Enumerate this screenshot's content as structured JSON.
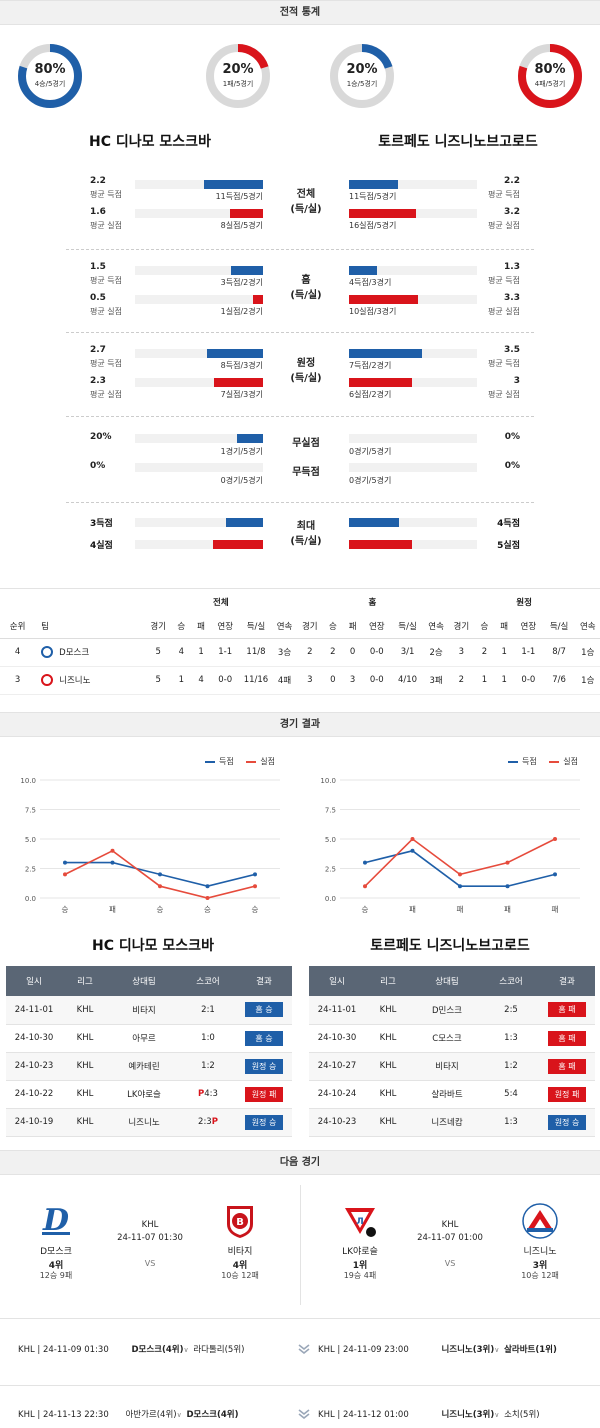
{
  "sections": {
    "stats": "전적 통계",
    "results": "경기 결과",
    "next": "다음 경기"
  },
  "teams": {
    "home": "HC 디나모 모스크바",
    "away": "토르페도 니즈니노브고로드"
  },
  "donuts": [
    {
      "pct": "80%",
      "sub": "4승/5경기",
      "value": 0.8,
      "color": "#1f5fa8"
    },
    {
      "pct": "20%",
      "sub": "1패/5경기",
      "value": 0.2,
      "color": "#d9141b"
    },
    {
      "pct": "20%",
      "sub": "1승/5경기",
      "value": 0.2,
      "color": "#1f5fa8"
    },
    {
      "pct": "80%",
      "sub": "4패/5경기",
      "value": 0.8,
      "color": "#d9141b"
    }
  ],
  "compare": {
    "labels": {
      "avg_gf": "평균 득점",
      "avg_ga": "평균 실점"
    },
    "groups": [
      {
        "cat1": "전체",
        "cat2": "(득/실)",
        "home": {
          "gf": "2.2",
          "gf_cap": "11득점/5경기",
          "gf_frac": 0.46,
          "ga": "1.6",
          "ga_cap": "8실점/5경기",
          "ga_frac": 0.26
        },
        "away": {
          "gf": "2.2",
          "gf_cap": "11득점/5경기",
          "gf_frac": 0.38,
          "ga": "3.2",
          "ga_cap": "16실점/5경기",
          "ga_frac": 0.52
        }
      },
      {
        "cat1": "홈",
        "cat2": "(득/실)",
        "home": {
          "gf": "1.5",
          "gf_cap": "3득점/2경기",
          "gf_frac": 0.25,
          "ga": "0.5",
          "ga_cap": "1실점/2경기",
          "ga_frac": 0.08
        },
        "away": {
          "gf": "1.3",
          "gf_cap": "4득점/3경기",
          "gf_frac": 0.22,
          "ga": "3.3",
          "ga_cap": "10실점/3경기",
          "ga_frac": 0.54
        }
      },
      {
        "cat1": "원정",
        "cat2": "(득/실)",
        "home": {
          "gf": "2.7",
          "gf_cap": "8득점/3경기",
          "gf_frac": 0.44,
          "ga": "2.3",
          "ga_cap": "7실점/3경기",
          "ga_frac": 0.38
        },
        "away": {
          "gf": "3.5",
          "gf_cap": "7득점/2경기",
          "gf_frac": 0.57,
          "ga": "3",
          "ga_cap": "6실점/2경기",
          "ga_frac": 0.49
        }
      }
    ],
    "cleansheet": {
      "cat1": "무실점",
      "cat2": "무득점",
      "home_cs": "20%",
      "home_cs_cap": "1경기/5경기",
      "home_cs_frac": 0.2,
      "away_cs": "0%",
      "away_cs_cap": "0경기/5경기",
      "home_ns": "0%",
      "home_ns_cap": "0경기/5경기",
      "away_ns": "0%",
      "away_ns_cap": "0경기/5경기"
    },
    "max": {
      "cat1": "최대",
      "cat2": "(득/실)",
      "home_gf": "3득점",
      "home_ga": "4실점",
      "away_gf": "4득점",
      "away_ga": "5실점",
      "home_gf_frac": 0.29,
      "home_ga_frac": 0.39,
      "away_gf_frac": 0.39,
      "away_ga_frac": 0.49
    }
  },
  "standings": {
    "group_headers": [
      "전체",
      "홈",
      "원정"
    ],
    "headers": [
      "순위",
      "팀",
      "경기",
      "승",
      "패",
      "연장",
      "득/실",
      "연속",
      "경기",
      "승",
      "패",
      "연장",
      "득/실",
      "연속",
      "경기",
      "승",
      "패",
      "연장",
      "득/실",
      "연속"
    ],
    "rows": [
      [
        "4",
        "D모스크",
        "5",
        "4",
        "1",
        "1-1",
        "11/8",
        "3승",
        "2",
        "2",
        "0",
        "0-0",
        "3/1",
        "2승",
        "3",
        "2",
        "1",
        "1-1",
        "8/7",
        "1승"
      ],
      [
        "3",
        "니즈니노",
        "5",
        "1",
        "4",
        "0-0",
        "11/16",
        "4패",
        "3",
        "0",
        "3",
        "0-0",
        "4/10",
        "3패",
        "2",
        "1",
        "1",
        "0-0",
        "7/6",
        "1승"
      ]
    ]
  },
  "charts": {
    "legend_gf": "득점",
    "legend_ga": "실점",
    "colors": {
      "gf": "#1f5fa8",
      "ga": "#e64b3c"
    }
  },
  "chart_data": [
    {
      "type": "line",
      "categories": [
        "승",
        "패",
        "승",
        "승",
        "승"
      ],
      "series": [
        {
          "name": "득점",
          "values": [
            3,
            3,
            2,
            1,
            2
          ]
        },
        {
          "name": "실점",
          "values": [
            2,
            4,
            1,
            0,
            1
          ]
        }
      ],
      "yticks": [
        "0.0",
        "2.5",
        "5.0",
        "7.5",
        "10.0"
      ],
      "ylim": [
        0,
        10
      ]
    },
    {
      "type": "line",
      "categories": [
        "승",
        "패",
        "패",
        "패",
        "패"
      ],
      "series": [
        {
          "name": "득점",
          "values": [
            3,
            4,
            1,
            1,
            2
          ]
        },
        {
          "name": "실점",
          "values": [
            1,
            5,
            2,
            3,
            5
          ]
        }
      ],
      "yticks": [
        "0.0",
        "2.5",
        "5.0",
        "7.5",
        "10.0"
      ],
      "ylim": [
        0,
        10
      ]
    }
  ],
  "results": {
    "headers": [
      "일시",
      "리그",
      "상대팀",
      "스코어",
      "결과"
    ],
    "home_rows": [
      {
        "date": "24-11-01",
        "league": "KHL",
        "opp": "비타지",
        "score": "2:1",
        "result": "홈 승",
        "win": true
      },
      {
        "date": "24-10-30",
        "league": "KHL",
        "opp": "아무르",
        "score": "1:0",
        "result": "홈 승",
        "win": true
      },
      {
        "date": "24-10-23",
        "league": "KHL",
        "opp": "예카테린",
        "score": "1:2",
        "result": "원정 승",
        "win": true
      },
      {
        "date": "24-10-22",
        "league": "KHL",
        "opp": "LK야로슬",
        "score": "P4:3",
        "result": "원정 패",
        "win": false
      },
      {
        "date": "24-10-19",
        "league": "KHL",
        "opp": "니즈니노",
        "score": "2:3P",
        "result": "원정 승",
        "win": true
      }
    ],
    "away_rows": [
      {
        "date": "24-11-01",
        "league": "KHL",
        "opp": "D민스크",
        "score": "2:5",
        "result": "홈 패",
        "win": false
      },
      {
        "date": "24-10-30",
        "league": "KHL",
        "opp": "C모스크",
        "score": "1:3",
        "result": "홈 패",
        "win": false
      },
      {
        "date": "24-10-27",
        "league": "KHL",
        "opp": "비타지",
        "score": "1:2",
        "result": "홈 패",
        "win": false
      },
      {
        "date": "24-10-24",
        "league": "KHL",
        "opp": "살라바트",
        "score": "5:4",
        "result": "원정 패",
        "win": false
      },
      {
        "date": "24-10-23",
        "league": "KHL",
        "opp": "니즈네캄",
        "score": "1:3",
        "result": "원정 승",
        "win": true
      }
    ]
  },
  "next_games": {
    "left": {
      "league": "KHL",
      "datetime": "24-11-07 01:30",
      "vs": "VS",
      "home": {
        "name": "D모스크",
        "rank": "4위",
        "record": "12승 9패"
      },
      "away": {
        "name": "비타지",
        "rank": "4위",
        "record": "10승 12패"
      }
    },
    "right": {
      "league": "KHL",
      "datetime": "24-11-07 01:00",
      "vs": "VS",
      "home": {
        "name": "LK야로슬",
        "rank": "1위",
        "record": "19승 4패"
      },
      "away": {
        "name": "니즈니노",
        "rank": "3위",
        "record": "10승 12패"
      }
    },
    "schedule_left": [
      {
        "league": "KHL | 24-11-09 01:30",
        "team": "D모스크(4위)",
        "opp": "라다톨리(5위)"
      },
      {
        "league": "KHL | 24-11-13 22:30",
        "team": "아반가르(4위)",
        "opp": "D모스크(4위)"
      }
    ],
    "schedule_right": [
      {
        "league": "KHL | 24-11-09 23:00",
        "team": "니즈니노(3위)",
        "opp": "살라바트(1위)"
      },
      {
        "league": "KHL | 24-11-12 01:00",
        "team": "니즈니노(3위)",
        "opp": "소치(5위)"
      }
    ]
  }
}
